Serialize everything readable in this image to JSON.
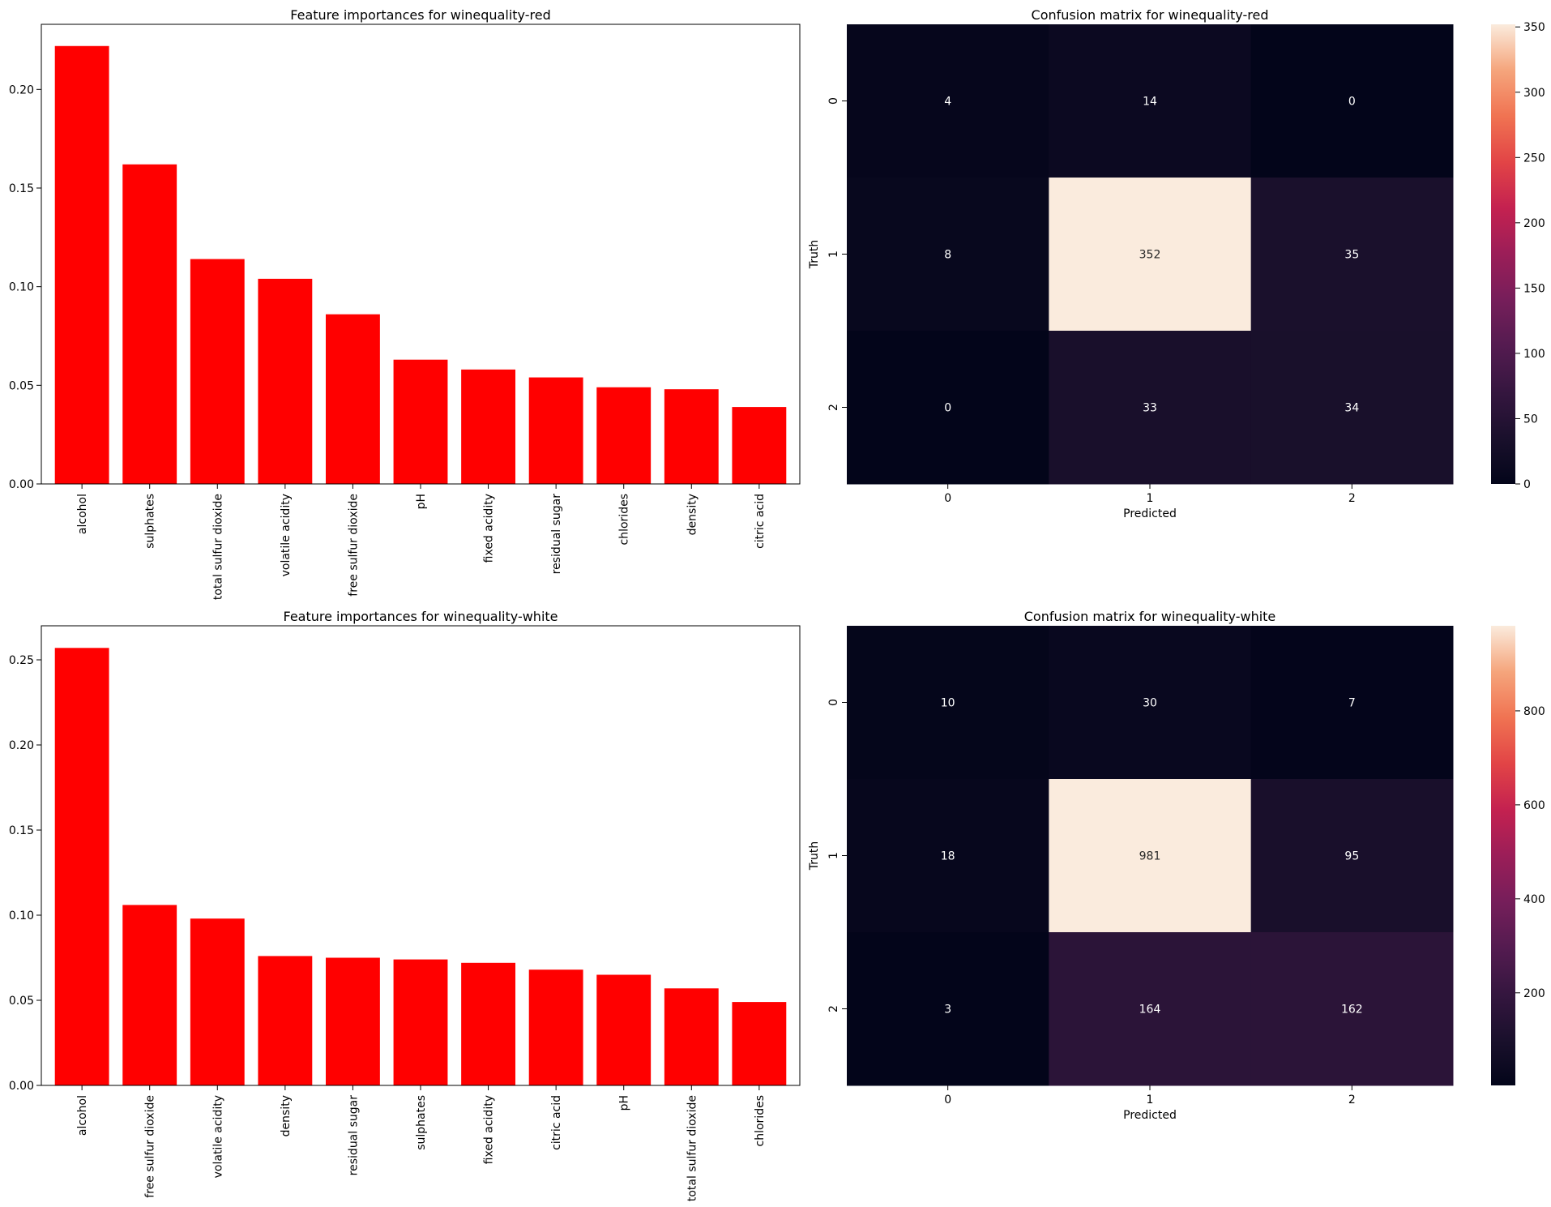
{
  "chart_data": [
    {
      "type": "bar",
      "title": "Feature importances for winequality-red",
      "categories": [
        "alcohol",
        "sulphates",
        "total sulfur dioxide",
        "volatile acidity",
        "free sulfur dioxide",
        "pH",
        "fixed acidity",
        "residual sugar",
        "chlorides",
        "density",
        "citric acid"
      ],
      "values": [
        0.222,
        0.162,
        0.114,
        0.104,
        0.086,
        0.063,
        0.058,
        0.054,
        0.049,
        0.048,
        0.039
      ],
      "ylim": [
        0,
        0.233
      ],
      "yticks": [
        0.0,
        0.05,
        0.1,
        0.15,
        0.2
      ],
      "ytick_labels": [
        "0.00",
        "0.05",
        "0.10",
        "0.15",
        "0.20"
      ],
      "color": "#ff0000"
    },
    {
      "type": "heatmap",
      "title": "Confusion matrix for winequality-red",
      "xlabel": "Predicted",
      "ylabel": "Truth",
      "x_labels": [
        "0",
        "1",
        "2"
      ],
      "y_labels": [
        "0",
        "1",
        "2"
      ],
      "values": [
        [
          4,
          14,
          0
        ],
        [
          8,
          352,
          35
        ],
        [
          0,
          33,
          34
        ]
      ],
      "colorbar_range": [
        0,
        352
      ],
      "colorbar_ticks": [
        0,
        50,
        100,
        150,
        200,
        250,
        300,
        350
      ],
      "colormap": "rocket"
    },
    {
      "type": "bar",
      "title": "Feature importances for winequality-white",
      "categories": [
        "alcohol",
        "free sulfur dioxide",
        "volatile acidity",
        "density",
        "residual sugar",
        "sulphates",
        "fixed acidity",
        "citric acid",
        "pH",
        "total sulfur dioxide",
        "chlorides"
      ],
      "values": [
        0.257,
        0.106,
        0.098,
        0.076,
        0.075,
        0.074,
        0.072,
        0.068,
        0.065,
        0.057,
        0.049
      ],
      "ylim": [
        0,
        0.27
      ],
      "yticks": [
        0.0,
        0.05,
        0.1,
        0.15,
        0.2,
        0.25
      ],
      "ytick_labels": [
        "0.00",
        "0.05",
        "0.10",
        "0.15",
        "0.20",
        "0.25"
      ],
      "color": "#ff0000"
    },
    {
      "type": "heatmap",
      "title": "Confusion matrix for winequality-white",
      "xlabel": "Predicted",
      "ylabel": "Truth",
      "x_labels": [
        "0",
        "1",
        "2"
      ],
      "y_labels": [
        "0",
        "1",
        "2"
      ],
      "values": [
        [
          10,
          30,
          7
        ],
        [
          18,
          981,
          95
        ],
        [
          3,
          164,
          162
        ]
      ],
      "colorbar_range": [
        3,
        981
      ],
      "colorbar_ticks": [
        200,
        400,
        600,
        800
      ],
      "colormap": "rocket"
    }
  ]
}
